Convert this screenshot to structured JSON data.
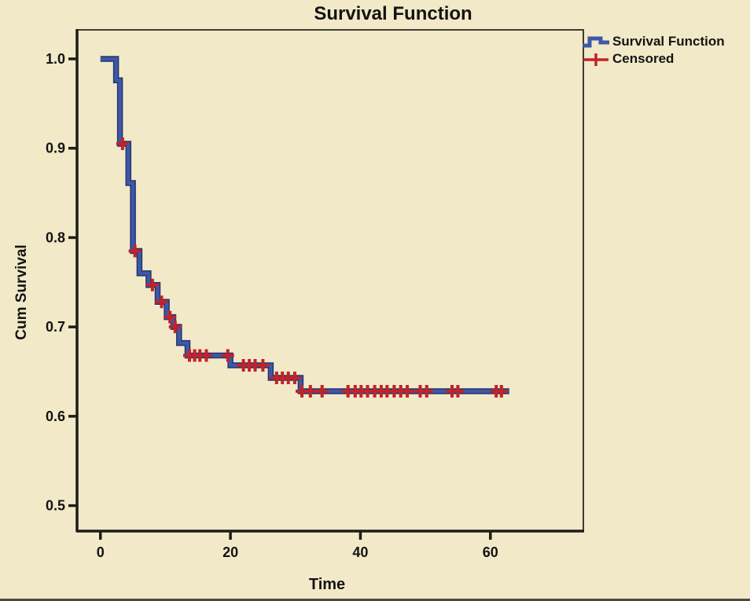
{
  "figure": {
    "background": "#f2e9c8",
    "border_color": "#3e3d31",
    "axis_color": "#1d1c18",
    "text_color": "#131313",
    "bottom_edge_color": "#4a4940"
  },
  "legend": {
    "position": "top-right",
    "items": [
      {
        "label": "Survival Function",
        "marker": "step-line-icon",
        "color": "#3e58a8"
      },
      {
        "label": "Censored",
        "marker": "plus-icon",
        "color": "#c12328"
      }
    ]
  },
  "chart_data": {
    "type": "line",
    "subtype": "kaplan-meier-step",
    "title": "Survival Function",
    "xlabel": "Time",
    "ylabel": "Cum Survival",
    "xlim": [
      -3.6,
      74.3
    ],
    "ylim": [
      0.4715,
      1.0325
    ],
    "x_ticks": [
      0,
      20,
      40,
      60
    ],
    "y_ticks": [
      0.5,
      0.6,
      0.7,
      0.8,
      0.9,
      1.0
    ],
    "grid": false,
    "legend_position": "top-right",
    "series": [
      {
        "name": "Survival Function",
        "color": "#3e58a8",
        "edge_color": "#24356e",
        "steps": [
          [
            0,
            1.0
          ],
          [
            2.4,
            0.976
          ],
          [
            3,
            0.905
          ],
          [
            4.3,
            0.861
          ],
          [
            5,
            0.785
          ],
          [
            6,
            0.76
          ],
          [
            7.4,
            0.747
          ],
          [
            8.8,
            0.728
          ],
          [
            10.2,
            0.711
          ],
          [
            11.2,
            0.7
          ],
          [
            12.1,
            0.682
          ],
          [
            13.4,
            0.668
          ],
          [
            20,
            0.657
          ],
          [
            26.2,
            0.643
          ],
          [
            30.8,
            0.628
          ]
        ],
        "end_time": 62.9
      }
    ],
    "censored": {
      "name": "Censored",
      "color": "#c12328",
      "points": [
        [
          3.4,
          0.905
        ],
        [
          5.3,
          0.785
        ],
        [
          8,
          0.747
        ],
        [
          9.4,
          0.728
        ],
        [
          10.7,
          0.711
        ],
        [
          11.5,
          0.7
        ],
        [
          13.7,
          0.668
        ],
        [
          14.5,
          0.668
        ],
        [
          15.3,
          0.668
        ],
        [
          16.3,
          0.668
        ],
        [
          19.6,
          0.668
        ],
        [
          22,
          0.657
        ],
        [
          22.9,
          0.657
        ],
        [
          23.8,
          0.657
        ],
        [
          25,
          0.657
        ],
        [
          27.1,
          0.643
        ],
        [
          28,
          0.643
        ],
        [
          28.9,
          0.643
        ],
        [
          29.9,
          0.643
        ],
        [
          31,
          0.628
        ],
        [
          32.3,
          0.628
        ],
        [
          34.1,
          0.628
        ],
        [
          38.1,
          0.628
        ],
        [
          39.2,
          0.628
        ],
        [
          40.1,
          0.628
        ],
        [
          41.1,
          0.628
        ],
        [
          42.2,
          0.628
        ],
        [
          43.2,
          0.628
        ],
        [
          44.1,
          0.628
        ],
        [
          45.2,
          0.628
        ],
        [
          46.2,
          0.628
        ],
        [
          47.2,
          0.628
        ],
        [
          49.2,
          0.628
        ],
        [
          50.2,
          0.628
        ],
        [
          54.1,
          0.628
        ],
        [
          55,
          0.628
        ],
        [
          60.9,
          0.628
        ],
        [
          61.7,
          0.628
        ]
      ]
    }
  }
}
